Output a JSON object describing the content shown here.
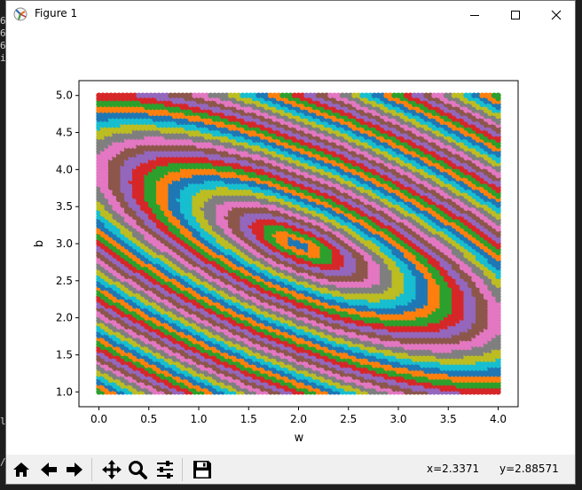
{
  "window": {
    "title": "Figure 1"
  },
  "terminal_fragments": [
    "6",
    "6",
    "6",
    "i",
    "lo",
    "/"
  ],
  "toolbar": {
    "buttons": [
      {
        "name": "home-button",
        "icon": "home-icon"
      },
      {
        "name": "back-button",
        "icon": "arrow-left-icon"
      },
      {
        "name": "forward-button",
        "icon": "arrow-right-icon"
      },
      {
        "name": "pan-button",
        "icon": "move-icon"
      },
      {
        "name": "zoom-button",
        "icon": "zoom-icon"
      },
      {
        "name": "subplots-button",
        "icon": "sliders-icon"
      },
      {
        "name": "save-button",
        "icon": "save-icon"
      }
    ],
    "coord_x": "x=2.3371",
    "coord_y": "y=2.88571"
  },
  "chart_data": {
    "type": "scatter",
    "xlabel": "w",
    "ylabel": "b",
    "xlim": [
      -0.2,
      4.2
    ],
    "ylim": [
      0.8,
      5.2
    ],
    "xticks": [
      "0.0",
      "0.5",
      "1.0",
      "1.5",
      "2.0",
      "2.5",
      "3.0",
      "3.5",
      "4.0"
    ],
    "yticks": [
      "1.0",
      "1.5",
      "2.0",
      "2.5",
      "3.0",
      "3.5",
      "4.0",
      "4.5",
      "5.0"
    ],
    "grid": false,
    "w_range": [
      0.0,
      4.0
    ],
    "b_range": [
      1.0,
      5.0
    ],
    "loss_center": {
      "w": 2.0,
      "b": 3.0
    },
    "palette": [
      "#1f77b4",
      "#ff7f0e",
      "#2ca02c",
      "#d62728",
      "#9467bd",
      "#8c564b",
      "#e377c2",
      "#7f7f7f",
      "#bcbd22",
      "#17becf"
    ]
  }
}
